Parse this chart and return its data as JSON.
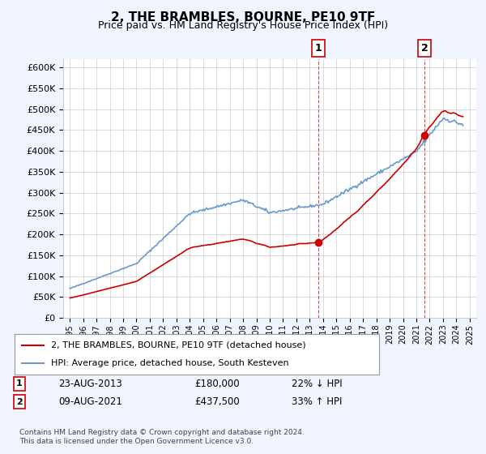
{
  "title": "2, THE BRAMBLES, BOURNE, PE10 9TF",
  "subtitle": "Price paid vs. HM Land Registry's House Price Index (HPI)",
  "ylabel": "",
  "background_color": "#f0f4ff",
  "plot_bg_color": "#ffffff",
  "transaction1": {
    "date": "2013-08-23",
    "price": 180000,
    "label": "1",
    "pct": "22%↓ HPI",
    "display": "23-AUG-2013",
    "price_str": "£180,000"
  },
  "transaction2": {
    "date": "2021-08-09",
    "price": 437500,
    "label": "2",
    "pct": "33%↑ HPI",
    "display": "09-AUG-2021",
    "price_str": "£437,500"
  },
  "legend1": "2, THE BRAMBLES, BOURNE, PE10 9TF (detached house)",
  "legend2": "HPI: Average price, detached house, South Kesteven",
  "footer": "Contains HM Land Registry data © Crown copyright and database right 2024.\nThis data is licensed under the Open Government Licence v3.0.",
  "hpi_color": "#6699cc",
  "price_color": "#cc0000",
  "marker_color": "#cc0000",
  "vline_color": "#cc0000",
  "ylim": [
    0,
    620000
  ],
  "yticks": [
    0,
    50000,
    100000,
    150000,
    200000,
    250000,
    300000,
    350000,
    400000,
    450000,
    500000,
    550000,
    600000
  ],
  "xlabel_years": [
    "1995",
    "1996",
    "1997",
    "1998",
    "1999",
    "2000",
    "2001",
    "2002",
    "2003",
    "2004",
    "2005",
    "2006",
    "2007",
    "2008",
    "2009",
    "2010",
    "2011",
    "2012",
    "2013",
    "2014",
    "2015",
    "2016",
    "2017",
    "2018",
    "2019",
    "2020",
    "2021",
    "2022",
    "2023",
    "2024",
    "2025"
  ]
}
